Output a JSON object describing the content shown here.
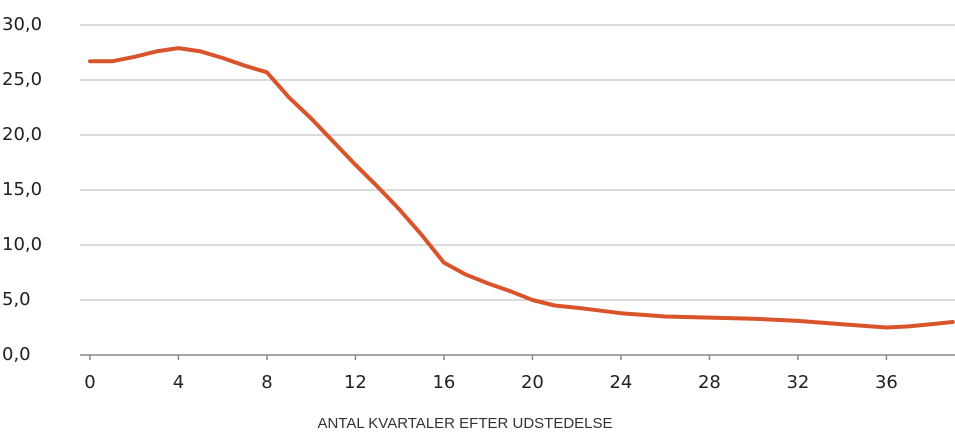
{
  "chart_data": {
    "type": "line",
    "x_label": "ANTAL KVARTALER EFTER UDSTEDELSE",
    "x": [
      0,
      1,
      2,
      3,
      4,
      5,
      6,
      7,
      8,
      9,
      10,
      11,
      12,
      13,
      14,
      15,
      16,
      17,
      18,
      19,
      20,
      21,
      22,
      24,
      26,
      28,
      30,
      32,
      34,
      36,
      37,
      38,
      39
    ],
    "series": [
      {
        "color": "#d9542b",
        "values": [
          26.7,
          26.7,
          27.1,
          27.6,
          27.9,
          27.6,
          27.0,
          26.3,
          25.7,
          23.4,
          21.5,
          19.4,
          17.3,
          15.3,
          13.2,
          10.9,
          8.4,
          7.3,
          6.5,
          5.8,
          5.0,
          4.5,
          4.3,
          3.8,
          3.5,
          3.4,
          3.3,
          3.1,
          2.8,
          2.5,
          2.6,
          2.8,
          3.0
        ]
      }
    ],
    "xlim": [
      -0.45,
      39.1
    ],
    "ylim": [
      0,
      30
    ],
    "xticks": [
      0,
      4,
      8,
      12,
      16,
      20,
      24,
      28,
      32,
      36
    ],
    "yticks": [
      {
        "value": 0,
        "label": "0,0"
      },
      {
        "value": 5,
        "label": "5,0"
      },
      {
        "value": 10,
        "label": "10,0"
      },
      {
        "value": 15,
        "label": "15,0"
      },
      {
        "value": 20,
        "label": "20,0"
      },
      {
        "value": 25,
        "label": "25,0"
      },
      {
        "value": 30,
        "label": "30,0"
      }
    ],
    "grid": true
  }
}
